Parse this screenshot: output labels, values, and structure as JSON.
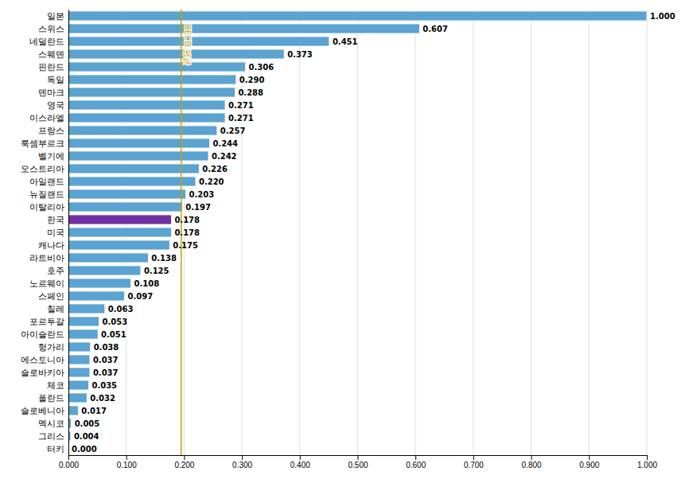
{
  "chart_data": {
    "type": "bar",
    "orientation": "horizontal",
    "categories": [
      "일본",
      "스위스",
      "네덜란드",
      "스웨덴",
      "핀란드",
      "독일",
      "덴마크",
      "영국",
      "이스라엘",
      "프랑스",
      "룩셈부르크",
      "벨기에",
      "오스트리아",
      "아일랜드",
      "뉴질랜드",
      "이탈리아",
      "한국",
      "미국",
      "캐나다",
      "라트비아",
      "호주",
      "노르웨이",
      "스페인",
      "칠레",
      "포르투갈",
      "아이슬란드",
      "헝가리",
      "에스토니아",
      "슬로바키아",
      "체코",
      "폴란드",
      "슬로베니아",
      "멕시코",
      "그리스",
      "터키"
    ],
    "values": [
      1.0,
      0.607,
      0.451,
      0.373,
      0.306,
      0.29,
      0.288,
      0.271,
      0.271,
      0.257,
      0.244,
      0.242,
      0.226,
      0.22,
      0.203,
      0.197,
      0.178,
      0.178,
      0.175,
      0.138,
      0.125,
      0.108,
      0.097,
      0.063,
      0.053,
      0.051,
      0.038,
      0.037,
      0.037,
      0.035,
      0.032,
      0.017,
      0.005,
      0.004,
      0.0
    ],
    "value_labels": [
      "1.000",
      "0.607",
      "0.451",
      "0.373",
      "0.306",
      "0.290",
      "0.288",
      "0.271",
      "0.271",
      "0.257",
      "0.244",
      "0.242",
      "0.226",
      "0.220",
      "0.203",
      "0.197",
      "0.178",
      "0.178",
      "0.175",
      "0.138",
      "0.125",
      "0.108",
      "0.097",
      "0.063",
      "0.053",
      "0.051",
      "0.038",
      "0.037",
      "0.037",
      "0.035",
      "0.032",
      "0.017",
      "0.005",
      "0.004",
      "0.000"
    ],
    "colors": [
      "#5ba3d0",
      "#5ba3d0",
      "#5ba3d0",
      "#5ba3d0",
      "#5ba3d0",
      "#5ba3d0",
      "#5ba3d0",
      "#5ba3d0",
      "#5ba3d0",
      "#5ba3d0",
      "#5ba3d0",
      "#5ba3d0",
      "#5ba3d0",
      "#5ba3d0",
      "#5ba3d0",
      "#5ba3d0",
      "#7030a0",
      "#5ba3d0",
      "#5ba3d0",
      "#5ba3d0",
      "#5ba3d0",
      "#5ba3d0",
      "#5ba3d0",
      "#5ba3d0",
      "#5ba3d0",
      "#5ba3d0",
      "#5ba3d0",
      "#5ba3d0",
      "#5ba3d0",
      "#5ba3d0",
      "#5ba3d0",
      "#5ba3d0",
      "#5ba3d0",
      "#5ba3d0",
      "#5ba3d0"
    ],
    "data_labels": true,
    "annotations": [
      {
        "text": "OECD 평균",
        "value": 0.195,
        "color": "#c8a000"
      }
    ],
    "xlim": [
      0.0,
      1.0
    ],
    "xticks": [
      {
        "value": 0.0,
        "label": "0.000"
      },
      {
        "value": 0.1,
        "label": "0.100"
      },
      {
        "value": 0.2,
        "label": "0.200"
      },
      {
        "value": 0.3,
        "label": "0.300"
      },
      {
        "value": 0.4,
        "label": "0.400"
      },
      {
        "value": 0.5,
        "label": "0.500"
      },
      {
        "value": 0.6,
        "label": "0.600"
      },
      {
        "value": 0.7,
        "label": "0.700"
      },
      {
        "value": 0.8,
        "label": "0.800"
      },
      {
        "value": 0.9,
        "label": "0.900"
      },
      {
        "value": 1.0,
        "label": "1.000"
      }
    ],
    "grid": true
  }
}
